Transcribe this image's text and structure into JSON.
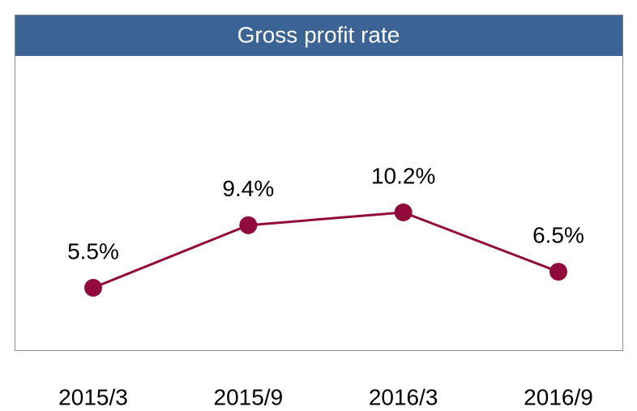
{
  "chart_data": {
    "type": "line",
    "title": "Gross profit rate",
    "categories": [
      "2015/3",
      "2015/9",
      "2016/3",
      "2016/9"
    ],
    "series": [
      {
        "name": null,
        "color": "#920a3b",
        "values": [
          5.5,
          9.4,
          10.2,
          6.5
        ],
        "value_labels": [
          "5.5%",
          "9.4%",
          "10.2%",
          "6.5%"
        ]
      }
    ]
  }
}
